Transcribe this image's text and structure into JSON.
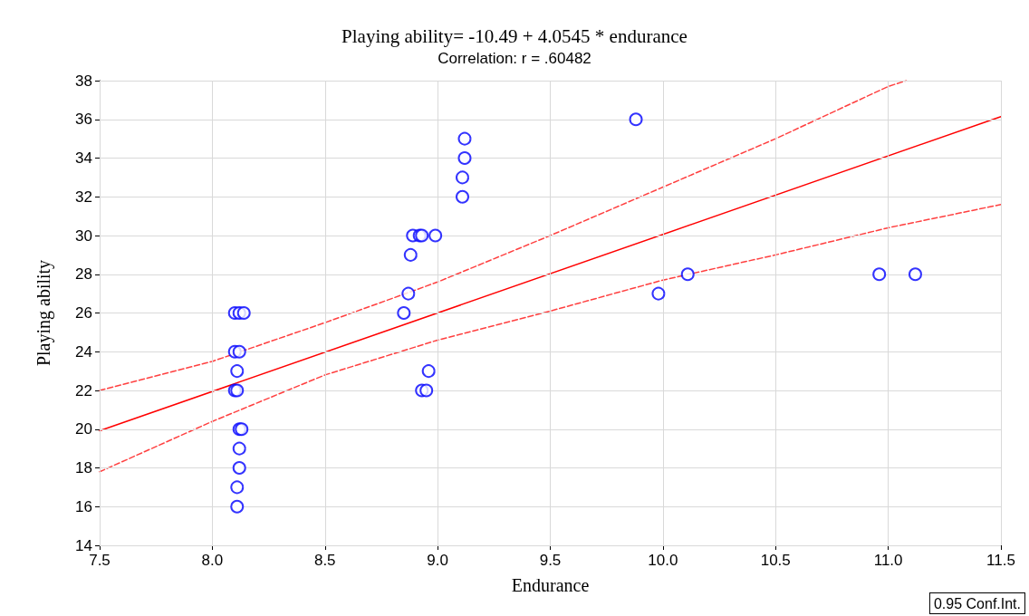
{
  "chart_data": {
    "type": "scatter",
    "title": "Playing ability= -10.49 + 4.0545 * endurance",
    "subtitle": "Correlation: r = .60482",
    "xlabel": "Endurance",
    "ylabel": "Playing ability",
    "xlim": [
      7.5,
      11.5
    ],
    "xticks": [
      7.5,
      {
        "value": 8,
        "label": "8.0"
      },
      8.5,
      {
        "value": 9,
        "label": "9.0"
      },
      9.5,
      {
        "value": 10,
        "label": "10.0"
      },
      10.5,
      {
        "value": 11,
        "label": "11.0"
      },
      11.5
    ],
    "ylim": [
      14,
      38
    ],
    "yticks": [
      14,
      16,
      18,
      20,
      22,
      24,
      26,
      28,
      30,
      32,
      34,
      36,
      38
    ],
    "grid": true,
    "annotations": [
      "0.95 Conf.Int."
    ],
    "series": [
      {
        "color": "#0000ff",
        "marker": "circle",
        "x": [
          8.1,
          8.12,
          8.14,
          8.1,
          8.12,
          8.11,
          8.1,
          8.11,
          8.12,
          8.13,
          8.12,
          8.12,
          8.11,
          8.11,
          9.12,
          9.12,
          9.11,
          9.11,
          8.89,
          8.92,
          8.93,
          8.99,
          8.88,
          8.87,
          8.85,
          8.96,
          8.93,
          8.95,
          9.88,
          9.98,
          10.11,
          10.96,
          11.12
        ],
        "values": [
          26,
          26,
          26,
          24,
          24,
          23,
          22,
          22,
          20,
          20,
          19,
          18,
          17,
          16,
          35,
          34,
          33,
          32,
          30,
          30,
          30,
          30,
          29,
          27,
          26,
          23,
          22,
          22,
          36,
          27,
          28,
          28,
          28
        ]
      },
      {
        "type": "line",
        "color": "#ff0000",
        "marker": "none",
        "line_style": "solid",
        "x": [
          7.5,
          11.5
        ],
        "values": [
          19.92,
          36.14
        ]
      },
      {
        "type": "line",
        "color": "#ff4040",
        "marker": "none",
        "line_style": "dashed",
        "x": [
          7.5,
          8.0,
          8.5,
          9.0,
          9.5,
          10.0,
          10.5,
          11.0,
          11.08
        ],
        "values": [
          22.0,
          23.5,
          25.5,
          27.6,
          30.0,
          32.5,
          35.0,
          37.7,
          38.0
        ]
      },
      {
        "type": "line",
        "color": "#ff4040",
        "marker": "none",
        "line_style": "dashed",
        "x": [
          7.5,
          8.0,
          8.5,
          9.0,
          9.5,
          10.0,
          10.5,
          11.0,
          11.5
        ],
        "values": [
          17.8,
          20.4,
          22.8,
          24.6,
          26.1,
          27.7,
          29.0,
          30.4,
          31.6
        ]
      }
    ]
  }
}
